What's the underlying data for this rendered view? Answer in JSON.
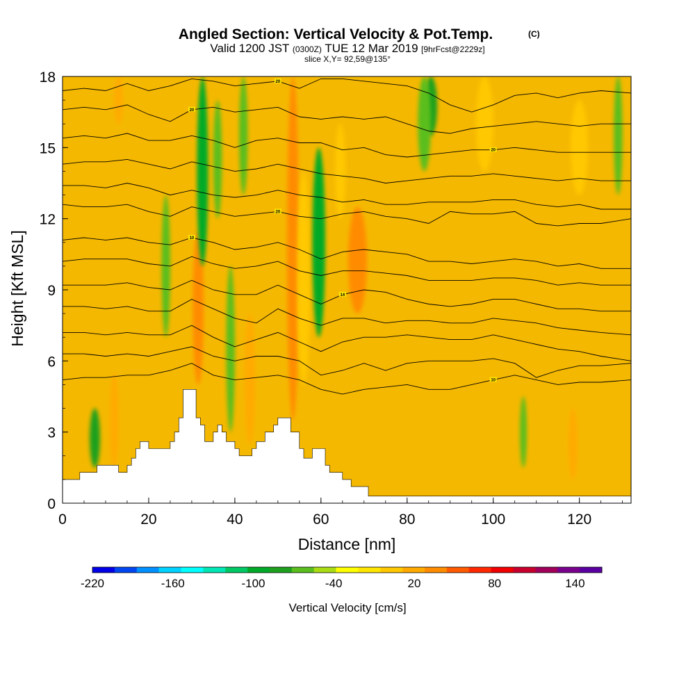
{
  "chart_data": {
    "type": "heatmap",
    "title": "Angled Section: Vertical Velocity & Pot.Temp.",
    "title_mark": "(C)",
    "subtitle": {
      "p1": "Valid 1200 JST",
      "p2": "(0300Z)",
      "p3": "TUE 12 Mar 2019",
      "p4": "[9hrFcst@2229z]"
    },
    "slice_text": "slice X,Y= 92,59@135°",
    "xlabel": "Distance [nm]",
    "ylabel": "Height [Kft MSL]",
    "xlim": [
      0,
      132
    ],
    "ylim": [
      0,
      18
    ],
    "xticks": [
      0,
      20,
      40,
      60,
      80,
      100,
      120
    ],
    "yticks": [
      0,
      3,
      6,
      9,
      12,
      15,
      18
    ],
    "background_color": "#f5b800",
    "colorbar": {
      "label": "Vertical Velocity [cm/s]",
      "range": [
        -220,
        160
      ],
      "step": 20,
      "tick_labels": [
        -220,
        -160,
        -100,
        -40,
        20,
        80,
        140
      ],
      "colors": [
        "#0000e6",
        "#0046f0",
        "#0090ff",
        "#00d2ff",
        "#00ffff",
        "#00e6b4",
        "#00c864",
        "#00aa28",
        "#1ea01e",
        "#5abe1e",
        "#aadc14",
        "#ffff00",
        "#ffe600",
        "#ffc800",
        "#ffaa00",
        "#ff8c00",
        "#ff5a00",
        "#ff2800",
        "#f00000",
        "#c8002d",
        "#a0005a",
        "#78008c",
        "#5a00a0"
      ]
    },
    "velocity_features": [
      {
        "x": 7.5,
        "y0": 1.5,
        "y1": 4.0,
        "w": 1.2,
        "value": -60
      },
      {
        "x": 12,
        "y0": 1.5,
        "y1": 5.5,
        "w": 1.0,
        "value": 60
      },
      {
        "x": 13,
        "y0": 16.0,
        "y1": 18.0,
        "w": 1.0,
        "value": 60
      },
      {
        "x": 24,
        "y0": 7.0,
        "y1": 13.0,
        "w": 1.0,
        "value": -40
      },
      {
        "x": 31.5,
        "y0": 5.0,
        "y1": 11.5,
        "w": 1.3,
        "value": 90
      },
      {
        "x": 32.5,
        "y0": 10.0,
        "y1": 18.0,
        "w": 1.3,
        "value": -70
      },
      {
        "x": 36,
        "y0": 12.0,
        "y1": 17.0,
        "w": 1.0,
        "value": -40
      },
      {
        "x": 39,
        "y0": 3.0,
        "y1": 10.0,
        "w": 1.0,
        "value": -30
      },
      {
        "x": 42,
        "y0": 13.0,
        "y1": 18.0,
        "w": 1.0,
        "value": -40
      },
      {
        "x": 43.5,
        "y0": 2.5,
        "y1": 8.0,
        "w": 1.2,
        "value": 70
      },
      {
        "x": 53.5,
        "y0": 3.5,
        "y1": 18.0,
        "w": 1.4,
        "value": 80
      },
      {
        "x": 56,
        "y0": 5.0,
        "y1": 14.0,
        "w": 1.5,
        "value": 40
      },
      {
        "x": 59.5,
        "y0": 7.0,
        "y1": 15.0,
        "w": 1.5,
        "value": -70
      },
      {
        "x": 68.5,
        "y0": 8.0,
        "y1": 12.5,
        "w": 2.2,
        "value": 80
      },
      {
        "x": 64.5,
        "y0": 12.0,
        "y1": 16.0,
        "w": 1.2,
        "value": 50
      },
      {
        "x": 85.5,
        "y0": 15.5,
        "y1": 18.0,
        "w": 1.5,
        "value": -60
      },
      {
        "x": 84,
        "y0": 14.0,
        "y1": 18.0,
        "w": 1.5,
        "value": -30
      },
      {
        "x": 107,
        "y0": 1.5,
        "y1": 4.5,
        "w": 0.8,
        "value": -40
      },
      {
        "x": 118.5,
        "y0": 1.0,
        "y1": 4.0,
        "w": 1.0,
        "value": 60
      },
      {
        "x": 129,
        "y0": 13.0,
        "y1": 18.0,
        "w": 1.0,
        "value": -40
      },
      {
        "x": 98,
        "y0": 14.0,
        "y1": 18.0,
        "w": 2.0,
        "value": 40
      },
      {
        "x": 120,
        "y0": 13.0,
        "y1": 17.0,
        "w": 2.0,
        "value": 40
      }
    ],
    "terrain": [
      [
        0,
        1.0
      ],
      [
        4,
        1.0
      ],
      [
        4,
        1.3
      ],
      [
        8,
        1.3
      ],
      [
        8,
        1.6
      ],
      [
        13,
        1.6
      ],
      [
        13,
        1.3
      ],
      [
        15,
        1.3
      ],
      [
        15,
        1.6
      ],
      [
        16,
        1.6
      ],
      [
        16,
        1.9
      ],
      [
        17,
        1.9
      ],
      [
        17,
        2.3
      ],
      [
        18,
        2.3
      ],
      [
        18,
        2.6
      ],
      [
        20,
        2.6
      ],
      [
        20,
        2.3
      ],
      [
        25,
        2.3
      ],
      [
        25,
        2.6
      ],
      [
        26,
        2.6
      ],
      [
        26,
        3.0
      ],
      [
        27,
        3.0
      ],
      [
        27,
        3.6
      ],
      [
        28,
        3.6
      ],
      [
        28,
        4.8
      ],
      [
        31,
        4.8
      ],
      [
        31,
        3.6
      ],
      [
        32,
        3.6
      ],
      [
        32,
        3.3
      ],
      [
        33,
        3.3
      ],
      [
        33,
        2.6
      ],
      [
        35,
        2.6
      ],
      [
        35,
        3.0
      ],
      [
        36,
        3.0
      ],
      [
        36,
        3.3
      ],
      [
        37,
        3.3
      ],
      [
        37,
        3.0
      ],
      [
        38,
        3.0
      ],
      [
        38,
        2.6
      ],
      [
        40,
        2.6
      ],
      [
        40,
        2.3
      ],
      [
        41,
        2.3
      ],
      [
        41,
        2.0
      ],
      [
        44,
        2.0
      ],
      [
        44,
        2.3
      ],
      [
        45,
        2.3
      ],
      [
        45,
        2.6
      ],
      [
        47,
        2.6
      ],
      [
        47,
        3.0
      ],
      [
        49,
        3.0
      ],
      [
        49,
        3.3
      ],
      [
        50,
        3.3
      ],
      [
        50,
        3.6
      ],
      [
        53,
        3.6
      ],
      [
        53,
        3.0
      ],
      [
        55,
        3.0
      ],
      [
        55,
        2.3
      ],
      [
        56,
        2.3
      ],
      [
        56,
        1.9
      ],
      [
        58,
        1.9
      ],
      [
        58,
        2.3
      ],
      [
        61,
        2.3
      ],
      [
        61,
        1.6
      ],
      [
        62,
        1.6
      ],
      [
        62,
        1.3
      ],
      [
        65,
        1.3
      ],
      [
        65,
        1.0
      ],
      [
        67,
        1.0
      ],
      [
        67,
        0.7
      ],
      [
        71,
        0.7
      ],
      [
        71,
        0.3
      ],
      [
        132,
        0.3
      ]
    ],
    "isentropes": [
      {
        "label": "20",
        "x": [
          0,
          5,
          10,
          15,
          20,
          25,
          30,
          35,
          40,
          45,
          50,
          55,
          60,
          65,
          70,
          75,
          80,
          85,
          90,
          95,
          100,
          105,
          110,
          115,
          120,
          125,
          132
        ],
        "y": [
          17.4,
          17.5,
          17.4,
          17.7,
          17.4,
          17.6,
          17.9,
          17.8,
          17.6,
          17.7,
          17.8,
          17.5,
          17.9,
          17.9,
          17.8,
          17.7,
          17.6,
          17.3,
          16.8,
          16.5,
          16.8,
          17.2,
          17.3,
          17.1,
          17.3,
          17.4,
          17.3
        ]
      },
      {
        "label": "20",
        "x": [
          0,
          5,
          10,
          15,
          20,
          25,
          30,
          35,
          40,
          45,
          50,
          55,
          60,
          65,
          70,
          75,
          80,
          85,
          90,
          95,
          100,
          105,
          110,
          115,
          120,
          125,
          132
        ],
        "y": [
          16.6,
          16.7,
          16.6,
          16.8,
          16.4,
          16.1,
          16.6,
          16.7,
          16.5,
          16.6,
          16.7,
          16.3,
          16.2,
          16.3,
          16.2,
          16.3,
          16.0,
          15.7,
          15.6,
          15.8,
          15.9,
          16.0,
          16.1,
          16.0,
          15.9,
          16.0,
          16.0
        ]
      },
      {
        "label": "20",
        "x": [
          0,
          5,
          10,
          15,
          20,
          25,
          30,
          35,
          40,
          45,
          50,
          55,
          60,
          65,
          70,
          75,
          80,
          85,
          90,
          95,
          100,
          105,
          110,
          115,
          120,
          125,
          132
        ],
        "y": [
          15.4,
          15.5,
          15.4,
          15.6,
          15.3,
          15.3,
          15.5,
          15.3,
          15.0,
          15.3,
          15.4,
          15.2,
          15.2,
          14.9,
          15.0,
          14.7,
          14.6,
          14.7,
          14.8,
          14.9,
          14.9,
          15.0,
          14.9,
          14.8,
          14.8,
          14.8,
          14.8
        ]
      },
      {
        "label": "",
        "x": [
          0,
          5,
          10,
          15,
          20,
          25,
          30,
          35,
          40,
          45,
          50,
          55,
          60,
          65,
          70,
          75,
          80,
          85,
          90,
          95,
          100,
          105,
          110,
          115,
          120,
          125,
          132
        ],
        "y": [
          14.3,
          14.4,
          14.4,
          14.5,
          14.3,
          14.1,
          14.4,
          14.2,
          14.0,
          14.1,
          14.3,
          14.1,
          13.9,
          13.8,
          13.7,
          13.5,
          13.6,
          13.7,
          13.8,
          13.8,
          13.9,
          13.8,
          13.7,
          13.6,
          13.7,
          13.6,
          13.6
        ]
      },
      {
        "label": "",
        "x": [
          0,
          5,
          10,
          15,
          20,
          25,
          30,
          35,
          40,
          45,
          50,
          55,
          60,
          65,
          70,
          75,
          80,
          85,
          90,
          95,
          100,
          105,
          110,
          115,
          120,
          125,
          132
        ],
        "y": [
          13.4,
          13.4,
          13.3,
          13.5,
          13.3,
          13.0,
          13.2,
          13.0,
          12.9,
          13.0,
          13.2,
          13.0,
          12.9,
          12.7,
          12.8,
          12.6,
          12.6,
          12.7,
          12.7,
          12.7,
          12.8,
          12.8,
          12.6,
          12.5,
          12.6,
          12.4,
          12.4
        ]
      },
      {
        "label": "20",
        "x": [
          0,
          5,
          10,
          15,
          20,
          25,
          30,
          35,
          40,
          45,
          50,
          55,
          60,
          65,
          70,
          75,
          80,
          85,
          90,
          95,
          100,
          105,
          110,
          115,
          120,
          125,
          132
        ],
        "y": [
          12.6,
          12.5,
          12.5,
          12.6,
          12.3,
          12.1,
          12.5,
          12.3,
          12.1,
          12.2,
          12.3,
          12.1,
          12.0,
          12.2,
          12.3,
          12.1,
          12.0,
          11.8,
          12.3,
          12.2,
          12.2,
          12.3,
          11.8,
          11.7,
          11.8,
          11.8,
          12.0
        ]
      },
      {
        "label": "10",
        "x": [
          0,
          5,
          10,
          15,
          20,
          25,
          30,
          35,
          40,
          45,
          50,
          55,
          60,
          65,
          70,
          75,
          80,
          85,
          90,
          95,
          100,
          105,
          110,
          115,
          120,
          125,
          132
        ],
        "y": [
          11.1,
          11.2,
          11.1,
          11.2,
          11.0,
          10.9,
          11.2,
          11.0,
          10.7,
          10.8,
          11.0,
          10.7,
          10.3,
          10.6,
          10.7,
          10.6,
          10.5,
          10.2,
          10.2,
          10.1,
          10.2,
          10.3,
          10.2,
          10.0,
          10.1,
          9.9,
          9.9
        ]
      },
      {
        "label": "",
        "x": [
          0,
          5,
          10,
          15,
          20,
          25,
          30,
          35,
          40,
          45,
          50,
          55,
          60,
          65,
          70,
          75,
          80,
          85,
          90,
          95,
          100,
          105,
          110,
          115,
          120,
          125,
          132
        ],
        "y": [
          10.2,
          10.3,
          10.3,
          10.3,
          10.1,
          10.0,
          10.4,
          10.1,
          9.9,
          10.0,
          10.2,
          9.8,
          9.6,
          9.8,
          9.8,
          9.7,
          9.6,
          9.4,
          9.4,
          9.4,
          9.5,
          9.5,
          9.4,
          9.2,
          9.3,
          9.2,
          9.2
        ]
      },
      {
        "label": "14",
        "x": [
          0,
          5,
          10,
          15,
          20,
          25,
          30,
          35,
          40,
          45,
          50,
          55,
          60,
          65,
          70,
          75,
          80,
          85,
          90,
          95,
          100,
          105,
          110,
          115,
          120,
          125,
          132
        ],
        "y": [
          9.2,
          9.2,
          9.2,
          9.3,
          9.1,
          9.0,
          9.4,
          9.0,
          8.8,
          8.8,
          9.2,
          8.8,
          8.4,
          8.8,
          9.0,
          8.9,
          8.6,
          8.4,
          8.3,
          8.4,
          8.6,
          8.6,
          8.4,
          8.2,
          8.2,
          8.1,
          8.1
        ]
      },
      {
        "label": "",
        "x": [
          0,
          5,
          10,
          15,
          20,
          25,
          30,
          35,
          40,
          45,
          50,
          55,
          60,
          65,
          70,
          75,
          80,
          85,
          90,
          95,
          100,
          105,
          110,
          115,
          120,
          125,
          132
        ],
        "y": [
          8.3,
          8.3,
          8.2,
          8.3,
          8.1,
          8.1,
          8.6,
          8.2,
          7.8,
          7.6,
          8.2,
          7.8,
          7.5,
          7.8,
          7.8,
          7.6,
          7.7,
          7.7,
          7.6,
          7.6,
          7.8,
          7.7,
          7.6,
          7.4,
          7.3,
          7.2,
          7.1
        ]
      },
      {
        "label": "",
        "x": [
          0,
          5,
          10,
          15,
          20,
          25,
          30,
          35,
          40,
          45,
          50,
          55,
          60,
          65,
          70,
          75,
          80,
          85,
          90,
          95,
          100,
          105,
          110,
          115,
          120,
          125,
          132
        ],
        "y": [
          7.2,
          7.2,
          7.1,
          7.2,
          7.1,
          7.1,
          7.5,
          7.0,
          6.6,
          6.9,
          7.2,
          6.8,
          6.4,
          6.8,
          7.0,
          7.0,
          7.1,
          7.0,
          6.9,
          6.9,
          7.1,
          6.9,
          6.7,
          6.5,
          6.4,
          6.2,
          6.0
        ]
      },
      {
        "label": "",
        "x": [
          0,
          5,
          10,
          15,
          20,
          25,
          30,
          35,
          40,
          45,
          50,
          55,
          60,
          65,
          70,
          75,
          80,
          85,
          90,
          95,
          100,
          105,
          110,
          115,
          120,
          125,
          132
        ],
        "y": [
          6.3,
          6.3,
          6.2,
          6.3,
          6.2,
          6.4,
          6.6,
          6.2,
          6.0,
          6.2,
          6.2,
          6.0,
          5.4,
          5.6,
          5.9,
          5.6,
          5.9,
          6.0,
          6.0,
          6.0,
          6.1,
          5.9,
          5.3,
          5.6,
          5.8,
          5.8,
          5.9
        ]
      },
      {
        "label": "10",
        "x": [
          0,
          5,
          10,
          15,
          20,
          25,
          30,
          35,
          40,
          45,
          50,
          55,
          60,
          65,
          70,
          75,
          80,
          85,
          90,
          95,
          100,
          105,
          110,
          115,
          120,
          125,
          132
        ],
        "y": [
          5.2,
          5.3,
          5.3,
          5.4,
          5.4,
          5.6,
          5.9,
          5.4,
          5.2,
          5.3,
          5.4,
          5.2,
          4.8,
          4.6,
          4.8,
          4.9,
          5.0,
          4.8,
          4.8,
          5.0,
          5.2,
          5.4,
          5.2,
          5.0,
          5.1,
          5.1,
          5.2
        ]
      }
    ]
  }
}
